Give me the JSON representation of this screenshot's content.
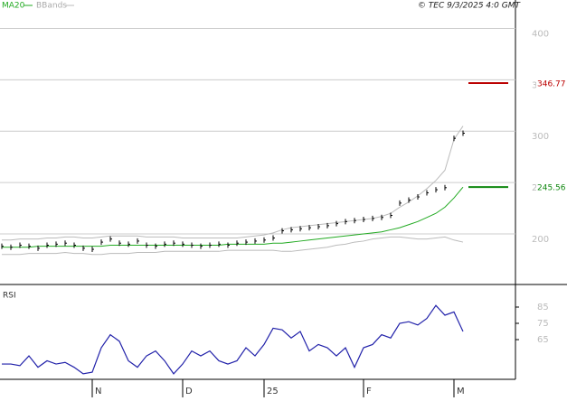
{
  "header": {
    "copyright": "© TEC 9/3/2025 4:0 GMT"
  },
  "chart_data": [
    {
      "type": "price",
      "categories": [
        null,
        null,
        null,
        null,
        null,
        null,
        null,
        null,
        null,
        null,
        "N",
        null,
        null,
        null,
        null,
        null,
        null,
        null,
        null,
        null,
        "D",
        null,
        null,
        null,
        null,
        null,
        null,
        null,
        null,
        "25",
        null,
        null,
        null,
        null,
        null,
        null,
        null,
        null,
        null,
        null,
        "F",
        null,
        null,
        null,
        null,
        null,
        null,
        null,
        null,
        null,
        "M",
        null
      ],
      "ylim": [
        152.5,
        427.7
      ],
      "yticks": [
        400,
        350,
        300,
        250,
        200
      ],
      "grid": true,
      "series": [
        {
          "color": "#000000",
          "values": [
            188,
            187,
            189,
            188,
            186,
            189,
            190,
            191,
            189,
            186,
            185,
            192,
            195,
            191,
            190,
            193,
            189,
            188,
            190,
            191,
            190,
            189,
            188,
            189,
            190,
            189,
            191,
            192,
            193,
            194,
            196,
            203,
            204,
            205,
            206,
            207,
            208,
            210,
            212,
            213,
            214,
            215,
            216,
            218,
            230,
            233,
            236,
            240,
            243,
            245,
            293,
            298
          ]
        },
        {
          "name": "MA20",
          "color": "#22aa22",
          "values": [
            187,
            187,
            187,
            187,
            188,
            188,
            188,
            188,
            188,
            188,
            188,
            188,
            189,
            189,
            189,
            189,
            189,
            189,
            189,
            189,
            189,
            189,
            189,
            189,
            189,
            190,
            190,
            190,
            190,
            190,
            191,
            191,
            192,
            193,
            194,
            195,
            196,
            197,
            198,
            199,
            200,
            201,
            202,
            204,
            206,
            209,
            212,
            216,
            220,
            226,
            235,
            245.56
          ]
        },
        {
          "name": "BBands",
          "color": "#bbbbbb",
          "upper": [
            194,
            194,
            195,
            195,
            195,
            196,
            196,
            197,
            197,
            196,
            196,
            197,
            198,
            198,
            198,
            198,
            197,
            197,
            197,
            197,
            196,
            196,
            196,
            196,
            196,
            196,
            196,
            197,
            198,
            199,
            201,
            204,
            206,
            207,
            208,
            209,
            210,
            211,
            212,
            213,
            214,
            215,
            217,
            220,
            226,
            231,
            237,
            244,
            252,
            262,
            292,
            305
          ],
          "lower": [
            180,
            180,
            180,
            181,
            181,
            181,
            181,
            182,
            181,
            181,
            180,
            180,
            181,
            181,
            181,
            182,
            182,
            182,
            183,
            183,
            183,
            183,
            183,
            183,
            183,
            184,
            184,
            184,
            184,
            184,
            184,
            183,
            183,
            184,
            185,
            186,
            187,
            189,
            190,
            192,
            193,
            195,
            196,
            197,
            197,
            196,
            195,
            195,
            196,
            197,
            194,
            192
          ]
        }
      ],
      "annotations": [
        {
          "value": 346.77,
          "label": "346.77",
          "color": "#bb0000"
        },
        {
          "value": 245.56,
          "label": "245.56",
          "color": "#118811"
        }
      ]
    },
    {
      "type": "line",
      "title": "RSI",
      "ylim": [
        40.6,
        97.2
      ],
      "yticks": [
        85,
        75,
        65
      ],
      "series": [
        {
          "color": "#2222aa",
          "values": [
            50,
            50,
            49,
            55,
            48,
            52,
            50,
            51,
            48,
            44,
            45,
            60,
            68,
            64,
            52,
            48,
            55,
            58,
            52,
            44,
            50,
            58,
            55,
            58,
            52,
            50,
            52,
            60,
            55,
            62,
            72,
            71,
            66,
            70,
            58,
            62,
            60,
            55,
            60,
            48,
            60,
            62,
            68,
            66,
            75,
            76,
            74,
            78,
            86,
            80,
            82,
            70
          ]
        }
      ]
    }
  ]
}
